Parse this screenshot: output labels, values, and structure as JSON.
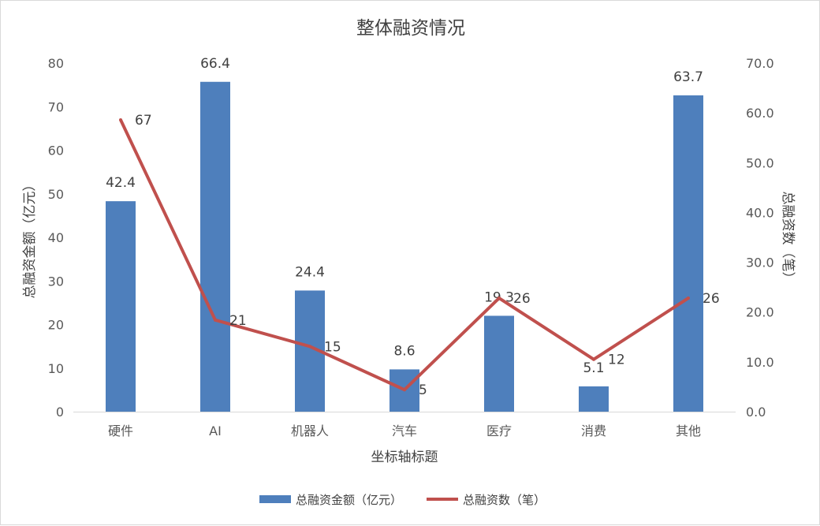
{
  "chart_data": {
    "type": "bar",
    "title": "整体融资情况",
    "categories": [
      "硬件",
      "AI",
      "机器人",
      "汽车",
      "医疗",
      "消费",
      "其他"
    ],
    "series": [
      {
        "name": "总融资金额（亿元）",
        "type": "bar",
        "axis": "left",
        "color": "#4e7fbc",
        "values": [
          42.4,
          66.4,
          24.4,
          8.6,
          19.3,
          5.1,
          63.7
        ],
        "labels": [
          "42.4",
          "66.4",
          "24.4",
          "8.6",
          "19.3",
          "5.1",
          "63.7"
        ],
        "heights": [
          48.3,
          75.7,
          27.8,
          9.7,
          22.0,
          5.8,
          72.6
        ]
      },
      {
        "name": "总融资数（笔）",
        "type": "line",
        "axis": "right",
        "color": "#c0504d",
        "values": [
          67,
          21,
          15,
          5,
          26,
          12,
          26
        ],
        "labels": [
          "67",
          "21",
          "15",
          "5",
          "26",
          "12",
          "26"
        ],
        "y_positions": [
          58.6,
          18.4,
          13.1,
          4.4,
          22.8,
          10.5,
          22.8
        ]
      }
    ],
    "xlabel": "坐标轴标题",
    "ylabel_left": "总融资金额（亿元）",
    "ylabel_right": "总融资数（笔）",
    "ylim_left": [
      0,
      80
    ],
    "ylim_right": [
      0,
      70
    ],
    "yticks_left": [
      "0",
      "10",
      "20",
      "30",
      "40",
      "50",
      "60",
      "70",
      "80"
    ],
    "yticks_right": [
      "0.0",
      "10.0",
      "20.0",
      "30.0",
      "40.0",
      "50.0",
      "60.0",
      "70.0"
    ],
    "grid": false,
    "legend": "bottom"
  }
}
